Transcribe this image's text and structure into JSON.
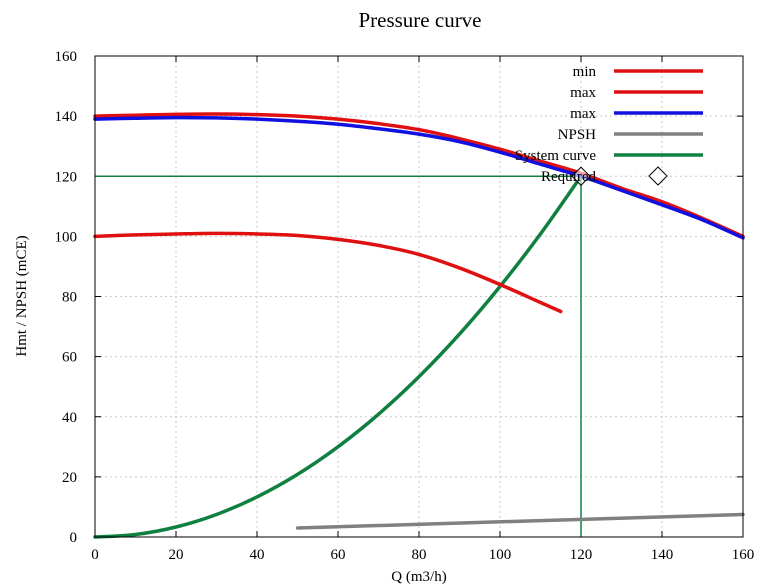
{
  "chart_data": {
    "type": "line",
    "title": "Pressure curve",
    "xlabel": "Q (m3/h)",
    "ylabel": "Hmt / NPSH (mCE)",
    "xlim": [
      0,
      160
    ],
    "ylim": [
      0,
      160
    ],
    "x_ticks": [
      "0",
      "20",
      "40",
      "60",
      "80",
      "100",
      "120",
      "140",
      "160"
    ],
    "y_ticks": [
      "0",
      "20",
      "40",
      "60",
      "80",
      "100",
      "120",
      "140",
      "160"
    ],
    "grid": true,
    "legend_position": "top-right",
    "series": [
      {
        "name": "min",
        "color": "#e01010",
        "x": [
          0,
          10,
          20,
          30,
          40,
          50,
          60,
          70,
          80,
          90,
          100,
          110,
          115
        ],
        "y": [
          100,
          100.5,
          100.8,
          101,
          100.8,
          100.3,
          99,
          97,
          94,
          89.5,
          84,
          78,
          75
        ]
      },
      {
        "name": "max",
        "color": "#e01010",
        "x": [
          0,
          10,
          20,
          30,
          40,
          50,
          60,
          70,
          80,
          90,
          100,
          110,
          120,
          130,
          140,
          150,
          160
        ],
        "y": [
          140,
          140.3,
          140.6,
          140.7,
          140.5,
          140,
          139,
          137.5,
          135.5,
          132.5,
          129,
          125,
          121,
          116,
          111.5,
          106,
          100
        ]
      },
      {
        "name": "max",
        "color": "#1010e0",
        "x": [
          0,
          10,
          20,
          30,
          40,
          50,
          60,
          70,
          80,
          90,
          100,
          110,
          120,
          130,
          140,
          150,
          160
        ],
        "y": [
          139,
          139.3,
          139.5,
          139.4,
          139,
          138.3,
          137.3,
          135.8,
          134,
          131.5,
          128,
          124,
          120,
          115.3,
          110.5,
          105.5,
          99.5
        ]
      },
      {
        "name": "NPSH",
        "color": "#808080",
        "x": [
          50,
          160
        ],
        "y": [
          3,
          7.5
        ]
      },
      {
        "name": "System curve",
        "color": "#108040",
        "x": [
          0,
          10,
          20,
          30,
          40,
          50,
          60,
          70,
          80,
          90,
          100,
          110,
          120
        ],
        "y": [
          0,
          0.83,
          3.33,
          7.5,
          13.33,
          20.83,
          30,
          40.83,
          53.33,
          67.5,
          83.33,
          100.83,
          120
        ]
      }
    ],
    "required_point": {
      "name": "Required",
      "x": 120,
      "y": 120
    },
    "reference_lines": {
      "color": "#108040",
      "horizontal_y": 120,
      "vertical_x": 120
    }
  }
}
